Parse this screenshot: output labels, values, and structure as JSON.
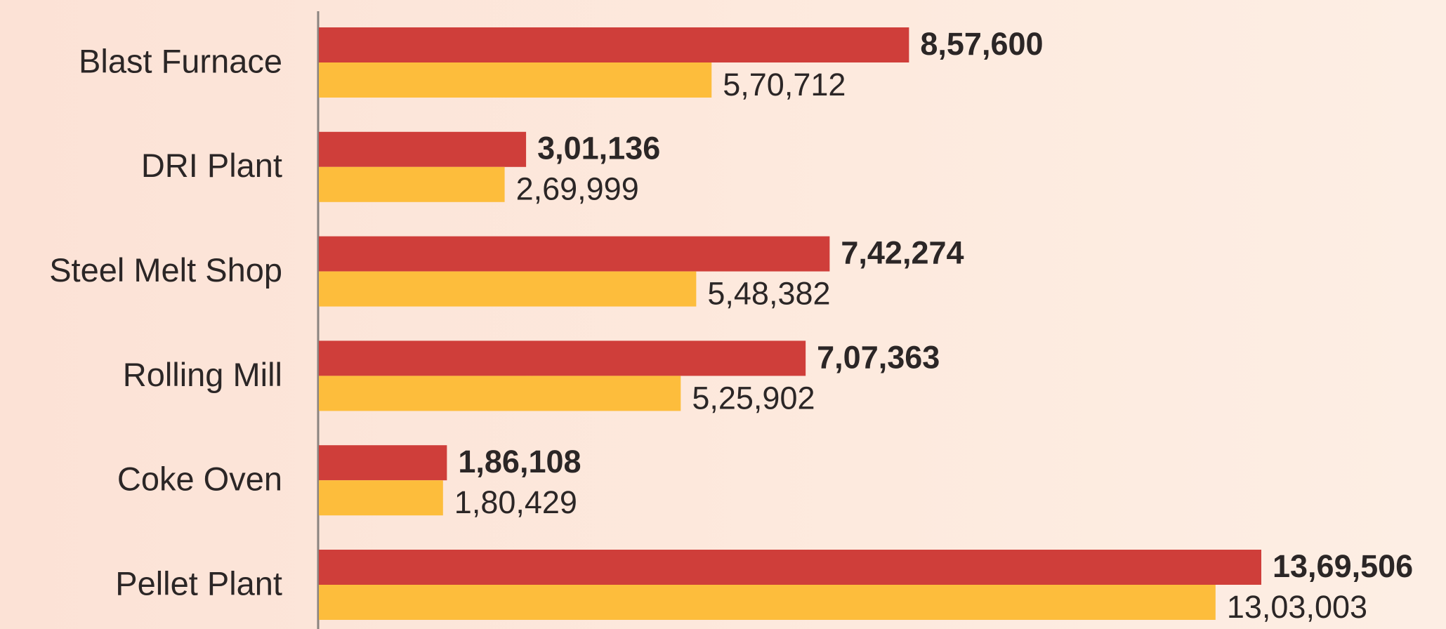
{
  "chart_data": {
    "type": "bar",
    "orientation": "horizontal",
    "categories": [
      "Blast Furnace",
      "DRI Plant",
      "Steel Melt Shop",
      "Rolling Mill",
      "Coke Oven",
      "Pellet Plant"
    ],
    "series": [
      {
        "color": "#cf3e3a",
        "values": [
          857600,
          301136,
          742274,
          707363,
          186108,
          1369506
        ],
        "value_labels": [
          "8,57,600",
          "3,01,136",
          "7,42,274",
          "7,07,363",
          "1,86,108",
          "13,69,506"
        ]
      },
      {
        "color": "#fdbd3c",
        "values": [
          570712,
          269999,
          548382,
          525902,
          180429,
          1303003
        ],
        "value_labels": [
          "5,70,712",
          "2,69,999",
          "5,48,382",
          "5,25,902",
          "1,80,429",
          "13,03,003"
        ]
      }
    ]
  }
}
